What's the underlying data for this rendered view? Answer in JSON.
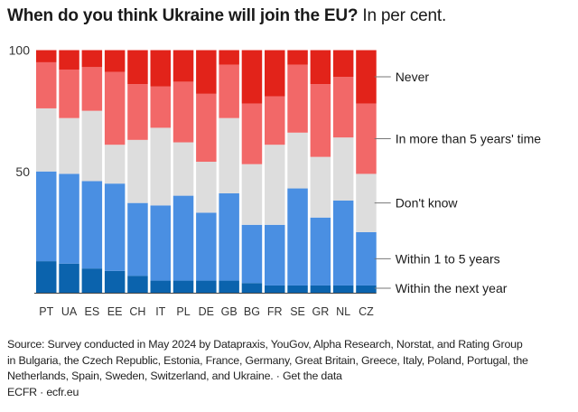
{
  "header": {
    "title_bold": "When do you think Ukraine will join the EU?",
    "title_sub": "In per cent."
  },
  "chart_data": {
    "type": "bar",
    "stacked": true,
    "title": "When do you think Ukraine will join the EU?",
    "subtitle": "In per cent.",
    "xlabel": "",
    "ylabel": "",
    "ylim": [
      0,
      100
    ],
    "yticks": [
      50,
      100
    ],
    "grid": false,
    "legend_placement": "right",
    "categories": [
      "PT",
      "UA",
      "ES",
      "EE",
      "CH",
      "IT",
      "PL",
      "DE",
      "GB",
      "BG",
      "FR",
      "SE",
      "GR",
      "NL",
      "CZ"
    ],
    "series": [
      {
        "name": "Within the next year",
        "color": "#0b63ad",
        "values": [
          13,
          12,
          10,
          9,
          7,
          5,
          5,
          5,
          5,
          4,
          3,
          3,
          3,
          3,
          3
        ]
      },
      {
        "name": "Within 1 to 5 years",
        "color": "#4a8fe2",
        "values": [
          37,
          37,
          36,
          36,
          30,
          31,
          35,
          28,
          36,
          24,
          25,
          40,
          28,
          35,
          22
        ]
      },
      {
        "name": "Don't know",
        "color": "#dddddd",
        "values": [
          26,
          23,
          29,
          16,
          26,
          32,
          22,
          21,
          31,
          25,
          33,
          23,
          25,
          26,
          24
        ]
      },
      {
        "name": "In more than 5 years' time",
        "color": "#f26868",
        "values": [
          19,
          20,
          18,
          30,
          23,
          17,
          25,
          28,
          22,
          25,
          20,
          28,
          30,
          25,
          29
        ]
      },
      {
        "name": "Never",
        "color": "#e2231a",
        "values": [
          5,
          8,
          7,
          9,
          14,
          15,
          13,
          18,
          6,
          22,
          19,
          6,
          14,
          11,
          22
        ]
      }
    ]
  },
  "footer": {
    "source_lines": [
      "Source: Survey conducted in May 2024 by Datapraxis, YouGov, Alpha Research, Norstat, and Rating Group",
      "in Bulgaria, the Czech Republic, Estonia, France, Germany, Great Britain, Greece, Italy, Poland, Portugal, the",
      "Netherlands, Spain, Sweden, Switzerland, and Ukraine."
    ],
    "separator": " · ",
    "get_data_link": "Get the data",
    "credit": "ECFR · ecfr.eu"
  }
}
